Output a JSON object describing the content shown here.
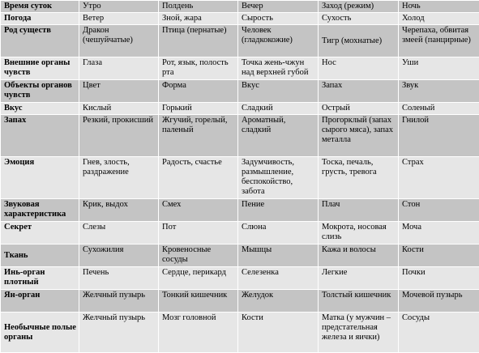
{
  "table": {
    "header": [
      "Время суток",
      "Утро",
      "Полдень",
      "Вечер",
      "Заход (режим)",
      "Ночь"
    ],
    "rows": [
      [
        "Погода",
        "Ветер",
        "Зной, жара",
        "Сырость",
        "Сухость",
        "Холод"
      ],
      [
        "Род существ",
        "Дракон (чешуйчатые)",
        "Птица (пернатые)",
        "Человек (гладкокожие)",
        "Тигр (мохнатые)",
        "Черепаха, обвитая змеей (панцирные)"
      ],
      [
        "Внешние органы чувств",
        "Глаза",
        "Рот, язык, полость рта",
        "Точка жень-чжун над верхней губой",
        "Нос",
        "Уши"
      ],
      [
        "Объекты органов чувств",
        "Цвет",
        "Форма",
        "Вкус",
        "Запах",
        "Звук"
      ],
      [
        "Вкус",
        "Кислый",
        "Горький",
        "Сладкий",
        "Острый",
        "Соленый"
      ],
      [
        "Запах",
        "Резкий, прокисший",
        "Жгучий, горелый, паленый",
        "Ароматный, сладкий",
        "Прогорклый (запах сырого мяса), запах металла",
        "Гнилой"
      ],
      [
        "Эмоция",
        "Гнев, злость, раздражение",
        "Радость, счастье",
        "Задумчивость, размышление, беспокойство, забота",
        "Тоска, печаль, грусть, тревога",
        "Страх"
      ],
      [
        "Звуковая характеристика",
        "Крик, выдох",
        "Смех",
        "Пение",
        "Плач",
        "Стон"
      ],
      [
        "Секрет",
        "Слезы",
        "Пот",
        "Слюна",
        "Мокрота, носовая слизь",
        "Моча"
      ],
      [
        "Ткань",
        "Сухожилия",
        "Кровеносные сосуды",
        "Мышцы",
        "Кажа и волосы",
        "Кости"
      ],
      [
        "Инь-орган плотный",
        "Печень",
        "Сердце, перикард",
        "Селезенка",
        "Легкие",
        "Почки"
      ],
      [
        "Ян-орган",
        "Желчный пузырь",
        "Тонкий кишечник",
        "Желудок",
        "Толстый кишечник",
        "Мочевой пузырь"
      ],
      [
        "Необычные полые органы",
        "Желчный пузырь",
        "Мозг головной",
        "Кости",
        "Матка (у мужчин – предстательная железа и яички)",
        "Сосуды"
      ]
    ]
  },
  "colors": {
    "row_dark": "#c4c4c4",
    "row_light": "#e6e6e6",
    "grid": "#ffffff"
  }
}
